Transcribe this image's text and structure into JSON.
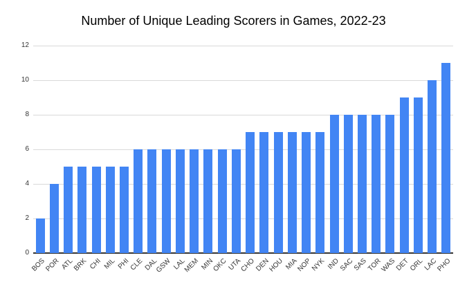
{
  "chart_data": {
    "type": "bar",
    "title": "Number of Unique Leading Scorers in Games, 2022-23",
    "xlabel": "",
    "ylabel": "",
    "categories": [
      "BOS",
      "POR",
      "ATL",
      "BRK",
      "CHI",
      "MIL",
      "PHI",
      "CLE",
      "DAL",
      "GSW",
      "LAL",
      "MEM",
      "MIN",
      "OKC",
      "UTA",
      "CHO",
      "DEN",
      "HOU",
      "MIA",
      "NOP",
      "NYK",
      "IND",
      "SAC",
      "SAS",
      "TOR",
      "WAS",
      "DET",
      "ORL",
      "LAC",
      "PHO"
    ],
    "values": [
      2,
      4,
      5,
      5,
      5,
      5,
      5,
      6,
      6,
      6,
      6,
      6,
      6,
      6,
      6,
      7,
      7,
      7,
      7,
      7,
      7,
      8,
      8,
      8,
      8,
      8,
      9,
      9,
      10,
      11
    ],
    "ylim": [
      0,
      12
    ],
    "yticks": [
      0,
      2,
      4,
      6,
      8,
      10,
      12
    ],
    "grid": true,
    "legend_position": "none",
    "colors": {
      "bar": "#4285f4",
      "gridline": "#d9d9d9",
      "axis_line": "#333333",
      "tick_text": "#333333",
      "title_text": "#000000",
      "background": "#ffffff"
    }
  }
}
